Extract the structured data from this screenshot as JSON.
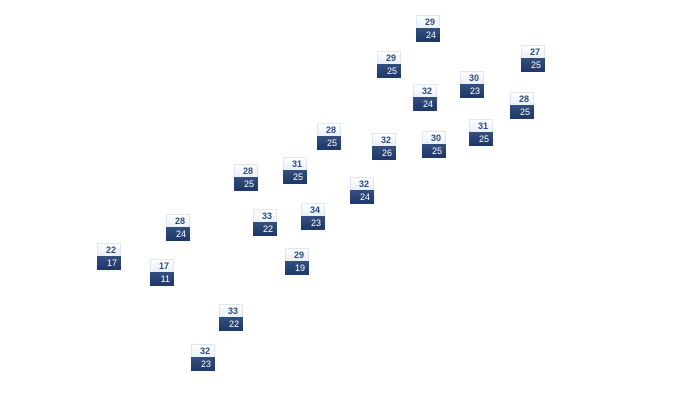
{
  "colors": {
    "high_text": "#2c4a7e",
    "low_background": "#1d3766",
    "low_text": "#ffffff"
  },
  "markers": [
    {
      "high": "29",
      "low": "24"
    },
    {
      "high": "29",
      "low": "25"
    },
    {
      "high": "27",
      "low": "25"
    },
    {
      "high": "30",
      "low": "23"
    },
    {
      "high": "32",
      "low": "24"
    },
    {
      "high": "28",
      "low": "25"
    },
    {
      "high": "31",
      "low": "25"
    },
    {
      "high": "28",
      "low": "25"
    },
    {
      "high": "32",
      "low": "26"
    },
    {
      "high": "30",
      "low": "25"
    },
    {
      "high": "31",
      "low": "25"
    },
    {
      "high": "28",
      "low": "25"
    },
    {
      "high": "32",
      "low": "24"
    },
    {
      "high": "33",
      "low": "22"
    },
    {
      "high": "34",
      "low": "23"
    },
    {
      "high": "28",
      "low": "24"
    },
    {
      "high": "22",
      "low": "17"
    },
    {
      "high": "17",
      "low": "11"
    },
    {
      "high": "29",
      "low": "19"
    },
    {
      "high": "33",
      "low": "22"
    },
    {
      "high": "32",
      "low": "23"
    }
  ]
}
